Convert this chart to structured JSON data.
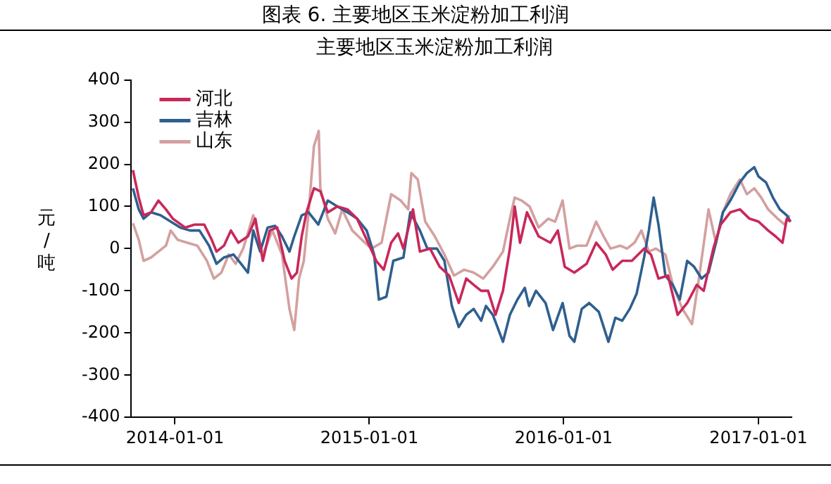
{
  "chart_data": {
    "type": "line",
    "title": "图表 6.  主要地区玉米淀粉加工利润",
    "subtitle": "主要地区玉米淀粉加工利润",
    "ylabel": "元/吨",
    "xlim": [
      "2013-10-11",
      "2017-03-04"
    ],
    "xticks": [
      "2014-01-01",
      "2015-01-01",
      "2016-01-01",
      "2017-01-01"
    ],
    "ylim": [
      -400,
      400
    ],
    "yticks": [
      -400,
      -300,
      -200,
      -100,
      0,
      100,
      200,
      300,
      400
    ],
    "legend": "top left",
    "series": [
      {
        "name": "河北",
        "color": "#c8285a",
        "x": [
          "2013-10-14",
          "2013-10-25",
          "2013-11-03",
          "2013-11-17",
          "2013-12-01",
          "2013-12-15",
          "2013-12-28",
          "2014-01-20",
          "2014-02-07",
          "2014-02-25",
          "2014-03-11",
          "2014-03-20",
          "2014-04-03",
          "2014-04-16",
          "2014-04-30",
          "2014-05-18",
          "2014-06-01",
          "2014-06-15",
          "2014-06-28",
          "2014-07-12",
          "2014-07-26",
          "2014-08-08",
          "2014-08-18",
          "2014-08-27",
          "2014-09-05",
          "2014-09-19",
          "2014-10-01",
          "2014-10-15",
          "2014-11-02",
          "2014-11-21",
          "2014-12-09",
          "2014-12-27",
          "2015-01-14",
          "2015-01-28",
          "2015-02-11",
          "2015-02-24",
          "2015-03-06",
          "2015-03-24",
          "2015-04-06",
          "2015-04-25",
          "2015-05-13",
          "2015-05-31",
          "2015-06-18",
          "2015-07-02",
          "2015-07-16",
          "2015-07-30",
          "2015-08-12",
          "2015-08-26",
          "2015-09-09",
          "2015-09-22",
          "2015-10-01",
          "2015-10-11",
          "2015-10-24",
          "2015-11-15",
          "2015-12-07",
          "2015-12-21",
          "2016-01-03",
          "2016-01-21",
          "2016-02-13",
          "2016-03-02",
          "2016-03-20",
          "2016-04-02",
          "2016-04-20",
          "2016-05-08",
          "2016-05-31",
          "2016-06-13",
          "2016-06-27",
          "2016-07-15",
          "2016-08-02",
          "2016-08-20",
          "2016-09-07",
          "2016-09-20",
          "2016-10-08",
          "2016-10-22",
          "2016-11-09",
          "2016-11-27",
          "2016-12-15",
          "2017-01-01",
          "2017-01-19",
          "2017-02-02",
          "2017-02-15",
          "2017-02-23",
          "2017-03-02"
        ],
        "values": [
          186,
          121,
          79,
          86,
          114,
          93,
          71,
          50,
          57,
          57,
          21,
          -7,
          7,
          43,
          14,
          29,
          71,
          -29,
          43,
          50,
          -29,
          -71,
          -57,
          29,
          86,
          143,
          136,
          86,
          100,
          93,
          71,
          21,
          -29,
          -50,
          14,
          36,
          0,
          93,
          -7,
          0,
          -43,
          -64,
          -129,
          -71,
          -86,
          -100,
          -100,
          -157,
          -100,
          0,
          100,
          14,
          86,
          29,
          14,
          43,
          -43,
          -57,
          -36,
          14,
          -14,
          -50,
          -29,
          -29,
          0,
          -14,
          -71,
          -64,
          -157,
          -129,
          -86,
          -100,
          0,
          57,
          86,
          93,
          71,
          64,
          43,
          29,
          14,
          71,
          64
        ]
      },
      {
        "name": "吉林",
        "color": "#2f5f8f",
        "x": [
          "2013-10-14",
          "2013-10-25",
          "2013-11-03",
          "2013-11-17",
          "2013-12-05",
          "2013-12-24",
          "2014-01-11",
          "2014-01-29",
          "2014-02-16",
          "2014-03-06",
          "2014-03-20",
          "2014-04-03",
          "2014-04-21",
          "2014-05-05",
          "2014-05-18",
          "2014-05-28",
          "2014-06-10",
          "2014-06-24",
          "2014-07-08",
          "2014-07-21",
          "2014-08-04",
          "2014-08-13",
          "2014-08-27",
          "2014-09-09",
          "2014-09-27",
          "2014-10-15",
          "2014-11-02",
          "2014-11-21",
          "2014-12-09",
          "2014-12-27",
          "2015-01-10",
          "2015-01-19",
          "2015-02-02",
          "2015-02-15",
          "2015-03-06",
          "2015-03-19",
          "2015-04-06",
          "2015-04-20",
          "2015-05-08",
          "2015-05-22",
          "2015-06-05",
          "2015-06-18",
          "2015-07-02",
          "2015-07-16",
          "2015-07-30",
          "2015-08-08",
          "2015-08-21",
          "2015-09-09",
          "2015-09-22",
          "2015-10-06",
          "2015-10-20",
          "2015-10-28",
          "2015-11-10",
          "2015-11-28",
          "2015-12-12",
          "2015-12-30",
          "2016-01-12",
          "2016-01-21",
          "2016-02-04",
          "2016-02-18",
          "2016-03-07",
          "2016-03-25",
          "2016-04-07",
          "2016-04-20",
          "2016-05-04",
          "2016-05-17",
          "2016-05-31",
          "2016-06-09",
          "2016-06-18",
          "2016-06-27",
          "2016-07-10",
          "2016-07-24",
          "2016-08-06",
          "2016-08-20",
          "2016-09-02",
          "2016-09-16",
          "2016-09-29",
          "2016-10-13",
          "2016-10-26",
          "2016-11-09",
          "2016-11-27",
          "2016-12-10",
          "2016-12-24",
          "2017-01-01",
          "2017-01-15",
          "2017-01-28",
          "2017-02-10",
          "2017-02-23",
          "2017-03-02"
        ],
        "values": [
          143,
          93,
          71,
          86,
          79,
          64,
          50,
          43,
          43,
          7,
          -36,
          -21,
          -14,
          -36,
          -57,
          43,
          -7,
          50,
          54,
          29,
          -7,
          29,
          79,
          86,
          57,
          114,
          100,
          86,
          71,
          43,
          -14,
          -121,
          -114,
          -29,
          -21,
          86,
          43,
          0,
          0,
          -29,
          -136,
          -186,
          -157,
          -143,
          -171,
          -136,
          -157,
          -221,
          -157,
          -121,
          -93,
          -136,
          -100,
          -129,
          -193,
          -129,
          -207,
          -221,
          -143,
          -129,
          -150,
          -221,
          -164,
          -171,
          -143,
          -107,
          -21,
          43,
          121,
          57,
          -64,
          -86,
          -121,
          -29,
          -43,
          -71,
          -57,
          14,
          86,
          114,
          157,
          179,
          193,
          171,
          157,
          121,
          93,
          79,
          64
        ]
      },
      {
        "name": "山东",
        "color": "#d4a0a0",
        "x": [
          "2013-10-14",
          "2013-10-25",
          "2013-11-03",
          "2013-11-17",
          "2013-12-01",
          "2013-12-15",
          "2013-12-24",
          "2014-01-06",
          "2014-01-24",
          "2014-02-12",
          "2014-03-02",
          "2014-03-15",
          "2014-03-29",
          "2014-04-12",
          "2014-04-25",
          "2014-05-09",
          "2014-05-28",
          "2014-06-15",
          "2014-07-03",
          "2014-07-21",
          "2014-08-04",
          "2014-08-13",
          "2014-08-22",
          "2014-08-31",
          "2014-09-09",
          "2014-09-19",
          "2014-09-28",
          "2014-10-01",
          "2014-10-15",
          "2014-10-29",
          "2014-11-11",
          "2014-11-30",
          "2014-12-18",
          "2015-01-05",
          "2015-01-24",
          "2015-02-11",
          "2015-03-01",
          "2015-03-15",
          "2015-03-21",
          "2015-04-02",
          "2015-04-16",
          "2015-05-04",
          "2015-05-22",
          "2015-06-09",
          "2015-06-28",
          "2015-07-16",
          "2015-08-03",
          "2015-08-21",
          "2015-09-09",
          "2015-09-22",
          "2015-10-01",
          "2015-10-14",
          "2015-10-29",
          "2015-11-15",
          "2015-12-03",
          "2015-12-16",
          "2015-12-30",
          "2016-01-12",
          "2016-01-26",
          "2016-02-13",
          "2016-03-02",
          "2016-03-16",
          "2016-03-29",
          "2016-04-16",
          "2016-04-29",
          "2016-05-13",
          "2016-05-26",
          "2016-06-09",
          "2016-06-22",
          "2016-07-10",
          "2016-07-24",
          "2016-08-11",
          "2016-08-29",
          "2016-09-11",
          "2016-09-29",
          "2016-10-13",
          "2016-10-26",
          "2016-11-09",
          "2016-11-27",
          "2016-12-10",
          "2016-12-24",
          "2017-01-06",
          "2017-01-19",
          "2017-02-06",
          "2017-02-19",
          "2017-02-28"
        ],
        "values": [
          60,
          21,
          -29,
          -21,
          -7,
          7,
          43,
          21,
          14,
          7,
          -29,
          -71,
          -57,
          -14,
          -36,
          0,
          79,
          -14,
          43,
          -14,
          -143,
          -193,
          -71,
          -29,
          86,
          243,
          279,
          143,
          71,
          36,
          93,
          43,
          21,
          0,
          14,
          129,
          114,
          93,
          179,
          164,
          64,
          29,
          -14,
          -64,
          -50,
          -57,
          -71,
          -43,
          -7,
          71,
          121,
          114,
          100,
          50,
          71,
          64,
          114,
          0,
          7,
          7,
          64,
          29,
          0,
          7,
          0,
          14,
          43,
          -7,
          0,
          -14,
          -86,
          -143,
          -179,
          -71,
          93,
          14,
          86,
          129,
          164,
          129,
          143,
          121,
          93,
          71,
          57,
          79
        ]
      }
    ]
  }
}
